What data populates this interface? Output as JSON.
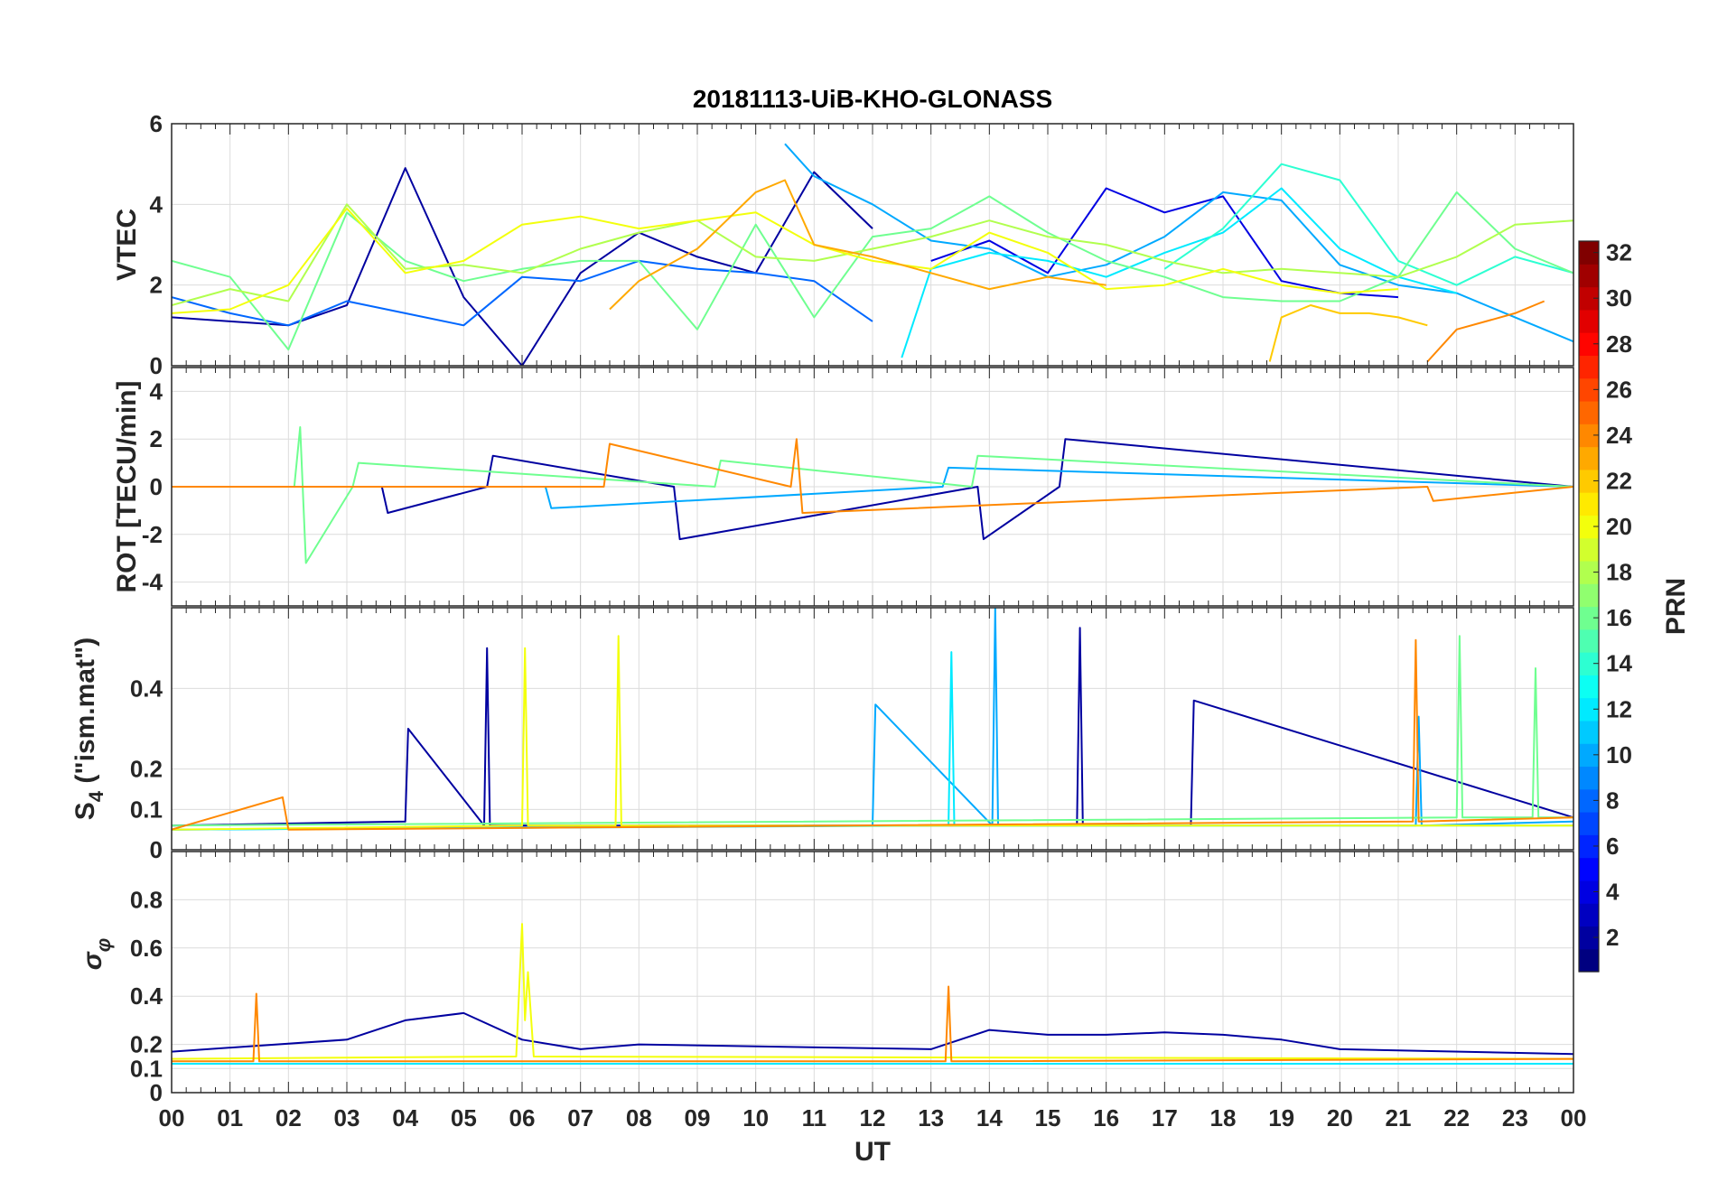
{
  "chart_data": {
    "type": "line",
    "title": "20181113-UiB-KHO-GLONASS",
    "xlabel": "UT",
    "x_ticks": [
      "00",
      "01",
      "02",
      "03",
      "04",
      "05",
      "06",
      "07",
      "08",
      "09",
      "10",
      "11",
      "12",
      "13",
      "14",
      "15",
      "16",
      "17",
      "18",
      "19",
      "20",
      "21",
      "22",
      "23",
      "00"
    ],
    "xlim": [
      0,
      24
    ],
    "grid": true,
    "panels": [
      {
        "id": "vtec",
        "ylabel": "VTEC",
        "ylim": [
          0,
          6
        ],
        "y_ticks": [
          "0",
          "2",
          "4",
          "6"
        ],
        "series": [
          {
            "prn": 2,
            "x": [
              0,
              1,
              2,
              3,
              4,
              5,
              6,
              7,
              8,
              9,
              10,
              11,
              12
            ],
            "y": [
              1.2,
              1.1,
              1.0,
              1.5,
              4.9,
              1.7,
              0.0,
              2.3,
              3.3,
              2.7,
              2.3,
              4.8,
              3.4
            ]
          },
          {
            "prn": 4,
            "x": [
              13,
              14,
              15,
              16,
              17,
              18,
              19,
              20,
              21
            ],
            "y": [
              2.6,
              3.1,
              2.3,
              4.4,
              3.8,
              4.2,
              2.1,
              1.8,
              1.7
            ]
          },
          {
            "prn": 8,
            "x": [
              0,
              1,
              2,
              3,
              4,
              5,
              6,
              7,
              8,
              9,
              10,
              11,
              12
            ],
            "y": [
              1.7,
              1.3,
              1.0,
              1.6,
              1.3,
              1.0,
              2.2,
              2.1,
              2.6,
              2.4,
              2.3,
              2.1,
              1.1
            ]
          },
          {
            "prn": 10,
            "x": [
              10.5,
              11,
              12,
              13,
              14,
              15,
              16,
              17,
              18,
              19,
              20,
              21,
              22,
              23,
              24
            ],
            "y": [
              5.5,
              4.7,
              4.0,
              3.1,
              2.9,
              2.2,
              2.5,
              3.2,
              4.3,
              4.1,
              2.5,
              2.0,
              1.8,
              1.2,
              0.6
            ]
          },
          {
            "prn": 12,
            "x": [
              12.5,
              13,
              14,
              15,
              16,
              17,
              18,
              19,
              20,
              21,
              22
            ],
            "y": [
              0.2,
              2.4,
              2.8,
              2.6,
              2.2,
              2.8,
              3.3,
              4.4,
              2.9,
              2.2,
              1.8
            ]
          },
          {
            "prn": 14,
            "x": [
              17,
              18,
              19,
              20,
              21,
              22,
              23,
              24
            ],
            "y": [
              2.4,
              3.4,
              5.0,
              4.6,
              2.6,
              2.0,
              2.7,
              2.3
            ]
          },
          {
            "prn": 16,
            "x": [
              0,
              1,
              2,
              3,
              4,
              5,
              6,
              7,
              8,
              9,
              10,
              11,
              12,
              13,
              14,
              15,
              16,
              17,
              18,
              19,
              20,
              21,
              22,
              23,
              24
            ],
            "y": [
              2.6,
              2.2,
              0.4,
              3.8,
              2.6,
              2.1,
              2.4,
              2.6,
              2.6,
              0.9,
              3.5,
              1.2,
              3.2,
              3.4,
              4.2,
              3.3,
              2.6,
              2.2,
              1.7,
              1.6,
              1.6,
              2.2,
              4.3,
              2.9,
              2.3
            ]
          },
          {
            "prn": 18,
            "x": [
              0,
              1,
              2,
              3,
              4,
              5,
              6,
              7,
              8,
              9,
              10,
              11,
              12,
              13,
              14,
              15,
              16,
              17,
              18,
              19,
              20,
              21,
              22,
              23,
              24
            ],
            "y": [
              1.5,
              1.9,
              1.6,
              4.0,
              2.4,
              2.5,
              2.3,
              2.9,
              3.3,
              3.6,
              2.7,
              2.6,
              2.9,
              3.2,
              3.6,
              3.2,
              3.0,
              2.6,
              2.3,
              2.4,
              2.3,
              2.2,
              2.7,
              3.5,
              3.6
            ]
          },
          {
            "prn": 20,
            "x": [
              0,
              1,
              2,
              3,
              4,
              5,
              6,
              7,
              8,
              9,
              10,
              11,
              12,
              13,
              14,
              15,
              16,
              17,
              18,
              19,
              20,
              21
            ],
            "y": [
              1.3,
              1.4,
              2.0,
              3.9,
              2.3,
              2.6,
              3.5,
              3.7,
              3.4,
              3.6,
              3.8,
              3.0,
              2.6,
              2.4,
              3.3,
              2.8,
              1.9,
              2.0,
              2.4,
              2.0,
              1.8,
              1.9
            ]
          },
          {
            "prn": 22,
            "x": [
              18.8,
              19,
              19.5,
              20,
              20.5,
              21,
              21.5
            ],
            "y": [
              0.1,
              1.2,
              1.5,
              1.3,
              1.3,
              1.2,
              1.0
            ]
          },
          {
            "prn": 23,
            "x": [
              7.5,
              8,
              9,
              10,
              10.5,
              11,
              12,
              13,
              14,
              15,
              16
            ],
            "y": [
              1.4,
              2.1,
              2.9,
              4.3,
              4.6,
              3.0,
              2.7,
              2.3,
              1.9,
              2.2,
              2.0
            ]
          },
          {
            "prn": 24,
            "x": [
              21.5,
              22,
              22.5,
              23,
              23.5
            ],
            "y": [
              0.1,
              0.9,
              1.1,
              1.3,
              1.6
            ]
          }
        ]
      },
      {
        "id": "rot",
        "ylabel": "ROT [TECU/min]",
        "ylim": [
          -5,
          5
        ],
        "y_ticks": [
          "-4",
          "-2",
          "0",
          "2",
          "4"
        ],
        "series": [
          {
            "prn": 2,
            "x": [
              0,
              3.6,
              3.7,
              5.4,
              5.5,
              8.6,
              8.7,
              13.8,
              13.9,
              15.2,
              15.3,
              24
            ],
            "y": [
              0,
              0,
              -1.1,
              0,
              1.3,
              0,
              -2.2,
              0,
              -2.2,
              0,
              2.0,
              0
            ]
          },
          {
            "prn": 10,
            "x": [
              0,
              6.4,
              6.5,
              13.2,
              13.3,
              24
            ],
            "y": [
              0,
              0,
              -0.9,
              0,
              0.8,
              0
            ]
          },
          {
            "prn": 16,
            "x": [
              0,
              2.1,
              2.2,
              2.3,
              3.1,
              3.2,
              9.3,
              9.4,
              13.7,
              13.8,
              24
            ],
            "y": [
              0,
              0,
              2.5,
              -3.2,
              0,
              1.0,
              0,
              1.1,
              0,
              1.3,
              0
            ]
          },
          {
            "prn": 24,
            "x": [
              0,
              7.4,
              7.5,
              10.6,
              10.7,
              10.8,
              21.5,
              21.6,
              24
            ],
            "y": [
              0,
              0,
              1.8,
              0,
              2.0,
              -1.1,
              0,
              -0.6,
              0
            ]
          }
        ]
      },
      {
        "id": "s4",
        "ylabel": "S4 (\"ism.mat\")",
        "ylim": [
          0,
          0.6
        ],
        "y_ticks": [
          "0",
          "0.1",
          "0.2",
          "0.4"
        ],
        "series": [
          {
            "prn": 2,
            "x": [
              0,
              4,
              4.05,
              5.35,
              5.4,
              5.45,
              15.5,
              15.55,
              15.6,
              17.45,
              17.5,
              24
            ],
            "y": [
              0.06,
              0.07,
              0.3,
              0.06,
              0.5,
              0.06,
              0.06,
              0.55,
              0.06,
              0.06,
              0.37,
              0.08
            ]
          },
          {
            "prn": 10,
            "x": [
              0,
              12.0,
              12.05,
              14.05,
              14.1,
              14.15,
              21.3,
              21.35,
              21.4,
              24
            ],
            "y": [
              0.05,
              0.06,
              0.36,
              0.06,
              0.6,
              0.06,
              0.06,
              0.33,
              0.06,
              0.07
            ]
          },
          {
            "prn": 12,
            "x": [
              0,
              13.3,
              13.35,
              13.4,
              24
            ],
            "y": [
              0.05,
              0.06,
              0.49,
              0.06,
              0.06
            ]
          },
          {
            "prn": 16,
            "x": [
              0,
              22.0,
              22.05,
              22.1,
              23.3,
              23.35,
              23.4,
              24
            ],
            "y": [
              0.06,
              0.08,
              0.53,
              0.08,
              0.08,
              0.45,
              0.08,
              0.08
            ]
          },
          {
            "prn": 20,
            "x": [
              0,
              6.0,
              6.05,
              6.1,
              7.6,
              7.65,
              7.7,
              24
            ],
            "y": [
              0.05,
              0.06,
              0.5,
              0.06,
              0.06,
              0.53,
              0.06,
              0.06
            ]
          },
          {
            "prn": 24,
            "x": [
              0,
              1.9,
              2.0,
              21.25,
              21.3,
              21.35,
              24
            ],
            "y": [
              0.05,
              0.13,
              0.05,
              0.07,
              0.52,
              0.07,
              0.08
            ]
          }
        ]
      },
      {
        "id": "sigphi",
        "ylabel": "σφ",
        "ylim": [
          0,
          1
        ],
        "y_ticks": [
          "0",
          "0.1",
          "0.2",
          "0.4",
          "0.6",
          "0.8"
        ],
        "series": [
          {
            "prn": 2,
            "x": [
              0,
              3,
              4,
              5,
              6,
              7,
              8,
              13,
              14,
              15,
              16,
              17,
              18,
              19,
              20,
              24
            ],
            "y": [
              0.17,
              0.22,
              0.3,
              0.33,
              0.22,
              0.18,
              0.2,
              0.18,
              0.26,
              0.24,
              0.24,
              0.25,
              0.24,
              0.22,
              0.18,
              0.16
            ]
          },
          {
            "prn": 12,
            "x": [
              0,
              24
            ],
            "y": [
              0.12,
              0.12
            ]
          },
          {
            "prn": 20,
            "x": [
              0,
              5.9,
              6.0,
              6.05,
              6.1,
              6.2,
              24
            ],
            "y": [
              0.14,
              0.15,
              0.7,
              0.3,
              0.5,
              0.15,
              0.14
            ]
          },
          {
            "prn": 24,
            "x": [
              0,
              1.4,
              1.45,
              1.5,
              13.25,
              13.3,
              13.35,
              24
            ],
            "y": [
              0.13,
              0.13,
              0.41,
              0.13,
              0.13,
              0.44,
              0.13,
              0.14
            ]
          }
        ]
      }
    ],
    "colorbar": {
      "label": "PRN",
      "range": [
        1,
        32
      ],
      "ticks": [
        "2",
        "4",
        "6",
        "8",
        "10",
        "12",
        "14",
        "16",
        "18",
        "20",
        "22",
        "24",
        "26",
        "28",
        "30",
        "32"
      ],
      "colormap": "jet"
    }
  }
}
